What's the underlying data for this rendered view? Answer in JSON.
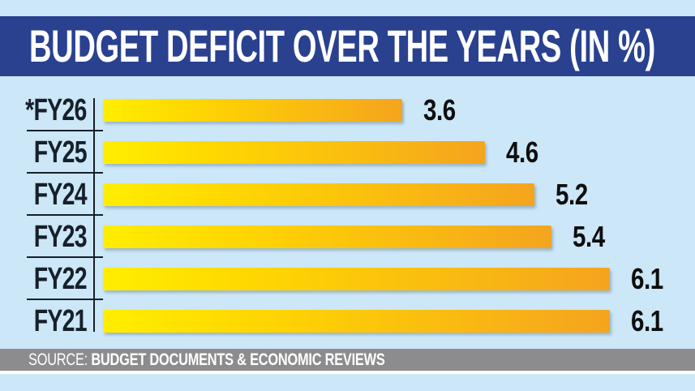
{
  "header": {
    "title": "BUDGET DEFICIT OVER THE YEARS (IN %)"
  },
  "source": {
    "prefix": "SOURCE:",
    "text": "BUDGET DOCUMENTS & ECONOMIC REVIEWS"
  },
  "colors": {
    "page_bg": "#CCE7F7",
    "header_bg": "#2A4190",
    "source_band_bg": "#8C8C8E",
    "line_ink": "#16202B",
    "title_text": "#FFFFFF",
    "source_text": "#FFFFFF",
    "value_text": "#0E0E0E",
    "bar_gradient": [
      "#FFEE00",
      "#FFD800",
      "#F5A41E"
    ]
  },
  "chart_data": {
    "type": "bar",
    "orientation": "horizontal",
    "title": "BUDGET DEFICIT OVER THE YEARS (IN %)",
    "categories": [
      "*FY26",
      "FY25",
      "FY24",
      "FY23",
      "FY22",
      "FY21"
    ],
    "values": [
      3.6,
      4.6,
      5.2,
      5.4,
      6.1,
      6.1
    ],
    "xlabel": "",
    "ylabel": "",
    "xlim": [
      0,
      7.13
    ],
    "grid": false,
    "legend": false,
    "data_labels": [
      "3.6",
      "4.6",
      "5.2",
      "5.4",
      "6.1",
      "6.1"
    ],
    "footnote_marker": "* denotes FY26 (marked with asterisk in label)"
  }
}
